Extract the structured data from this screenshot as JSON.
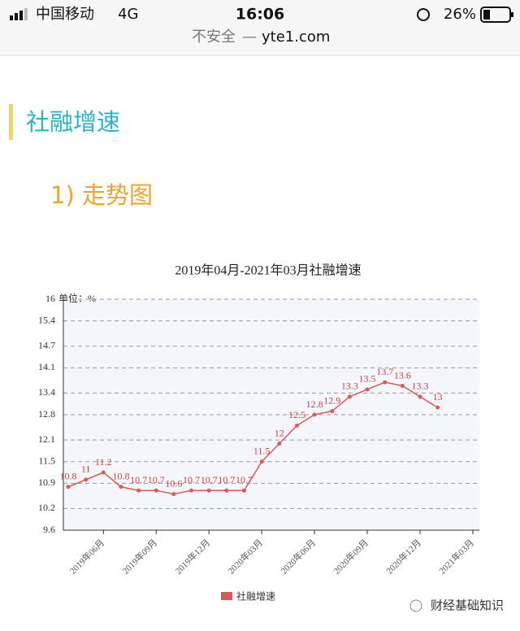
{
  "status_bar": {
    "carrier": "中国移动",
    "network": "4G",
    "time": "16:06",
    "battery": "26%"
  },
  "address_bar": {
    "security": "不安全",
    "domain": "yte1.com"
  },
  "section_title": "社融增速",
  "subsection_title": "1) 走势图",
  "chart_data": {
    "type": "line",
    "title": "2019年04月-2021年03月社融增速",
    "y_unit": "单位：%",
    "categories": [
      null,
      null,
      "2019年06月",
      null,
      null,
      "2019年09月",
      null,
      null,
      "2019年12月",
      null,
      null,
      "2020年03月",
      null,
      null,
      "2020年06月",
      null,
      null,
      "2020年09月",
      null,
      null,
      "2020年12月",
      null,
      null,
      "2021年03月"
    ],
    "series": [
      {
        "name": "社融增速",
        "color": "#d9595b",
        "values": [
          10.8,
          11,
          11.2,
          10.8,
          10.7,
          10.7,
          10.6,
          10.7,
          10.7,
          10.7,
          10.7,
          11.5,
          12,
          12.5,
          12.8,
          12.9,
          13.3,
          13.5,
          13.7,
          13.6,
          13.3,
          13,
          null,
          null
        ]
      }
    ],
    "ylim": [
      9.6,
      16
    ],
    "yticks": [
      9.6,
      10.2,
      10.9,
      11.5,
      12.1,
      12.8,
      13.4,
      14.1,
      14.7,
      15.4,
      16
    ],
    "grid": true,
    "legend": "bottom"
  },
  "watermark": "财经基础知识"
}
